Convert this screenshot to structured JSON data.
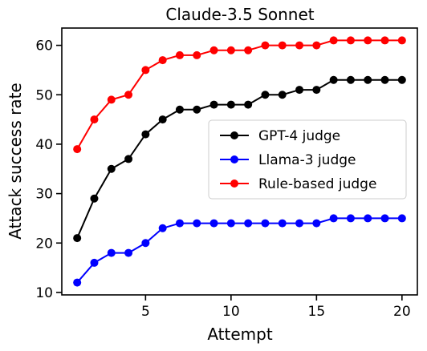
{
  "chart_data": {
    "type": "line",
    "title": "Claude-3.5 Sonnet",
    "xlabel": "Attempt",
    "ylabel": "Attack success rate",
    "xlim": [
      0.1,
      20.9
    ],
    "ylim": [
      9.5,
      63.5
    ],
    "xticks": [
      5,
      10,
      15,
      20
    ],
    "yticks": [
      10,
      20,
      30,
      40,
      50,
      60
    ],
    "grid": false,
    "legend_position": "center-right",
    "x": [
      1,
      2,
      3,
      4,
      5,
      6,
      7,
      8,
      9,
      10,
      11,
      12,
      13,
      14,
      15,
      16,
      17,
      18,
      19,
      20
    ],
    "series": [
      {
        "name": "GPT-4 judge",
        "color": "#000000",
        "values": [
          21,
          29,
          35,
          37,
          42,
          45,
          47,
          47,
          48,
          48,
          48,
          50,
          50,
          51,
          51,
          53,
          53,
          53,
          53,
          53
        ]
      },
      {
        "name": "Llama-3 judge",
        "color": "#0000ff",
        "values": [
          12,
          16,
          18,
          18,
          20,
          23,
          24,
          24,
          24,
          24,
          24,
          24,
          24,
          24,
          24,
          25,
          25,
          25,
          25,
          25
        ]
      },
      {
        "name": "Rule-based judge",
        "color": "#ff0000",
        "values": [
          39,
          45,
          49,
          50,
          55,
          57,
          58,
          58,
          59,
          59,
          59,
          60,
          60,
          60,
          60,
          61,
          61,
          61,
          61,
          61
        ]
      }
    ]
  }
}
